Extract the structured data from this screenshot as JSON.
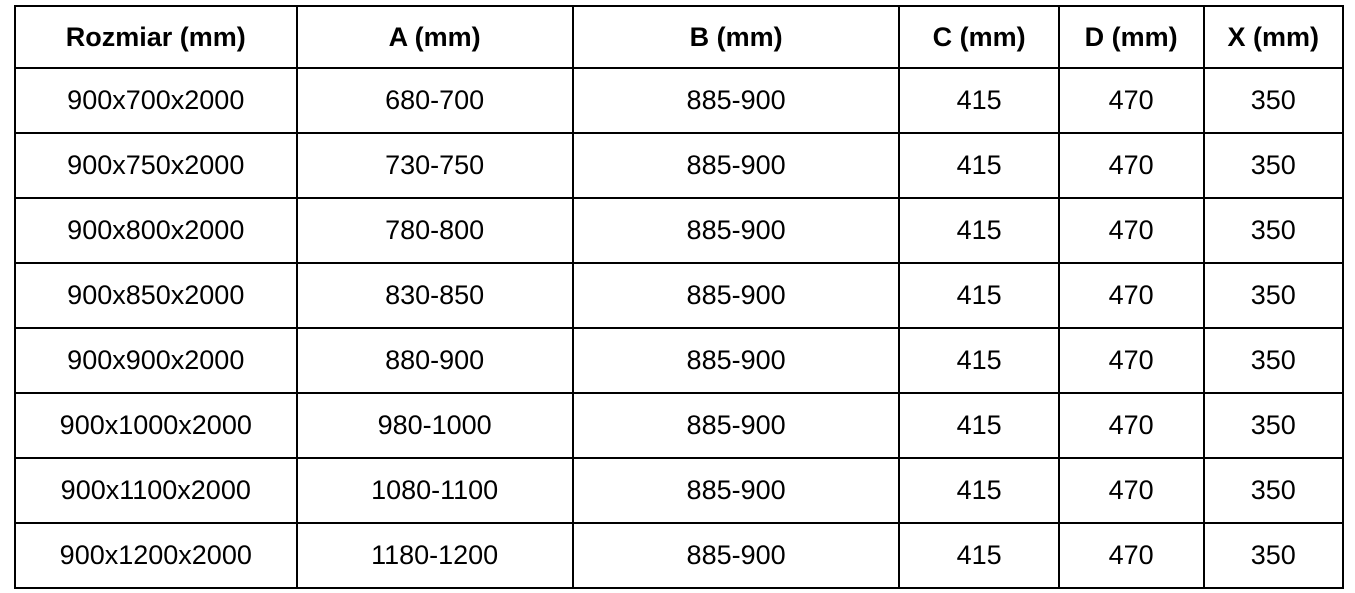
{
  "table": {
    "columns": [
      "Rozmiar (mm)",
      "A (mm)",
      "B (mm)",
      "C (mm)",
      "D (mm)",
      "X (mm)"
    ],
    "rows": [
      [
        "900x700x2000",
        "680-700",
        "885-900",
        "415",
        "470",
        "350"
      ],
      [
        "900x750x2000",
        "730-750",
        "885-900",
        "415",
        "470",
        "350"
      ],
      [
        "900x800x2000",
        "780-800",
        "885-900",
        "415",
        "470",
        "350"
      ],
      [
        "900x850x2000",
        "830-850",
        "885-900",
        "415",
        "470",
        "350"
      ],
      [
        "900x900x2000",
        "880-900",
        "885-900",
        "415",
        "470",
        "350"
      ],
      [
        "900x1000x2000",
        "980-1000",
        "885-900",
        "415",
        "470",
        "350"
      ],
      [
        "900x1100x2000",
        "1080-1100",
        "885-900",
        "415",
        "470",
        "350"
      ],
      [
        "900x1200x2000",
        "1180-1200",
        "885-900",
        "415",
        "470",
        "350"
      ]
    ],
    "colors": {
      "border": "#000000",
      "text": "#000000",
      "background": "#ffffff"
    }
  },
  "chart_data": {
    "type": "table",
    "title": "",
    "columns": [
      "Rozmiar (mm)",
      "A (mm)",
      "B (mm)",
      "C (mm)",
      "D (mm)",
      "X (mm)"
    ],
    "rows": [
      [
        "900x700x2000",
        "680-700",
        "885-900",
        "415",
        "470",
        "350"
      ],
      [
        "900x750x2000",
        "730-750",
        "885-900",
        "415",
        "470",
        "350"
      ],
      [
        "900x800x2000",
        "780-800",
        "885-900",
        "415",
        "470",
        "350"
      ],
      [
        "900x850x2000",
        "830-850",
        "885-900",
        "415",
        "470",
        "350"
      ],
      [
        "900x900x2000",
        "880-900",
        "885-900",
        "415",
        "470",
        "350"
      ],
      [
        "900x1000x2000",
        "980-1000",
        "885-900",
        "415",
        "470",
        "350"
      ],
      [
        "900x1100x2000",
        "1080-1100",
        "885-900",
        "415",
        "470",
        "350"
      ],
      [
        "900x1200x2000",
        "1180-1200",
        "885-900",
        "415",
        "470",
        "350"
      ]
    ]
  }
}
